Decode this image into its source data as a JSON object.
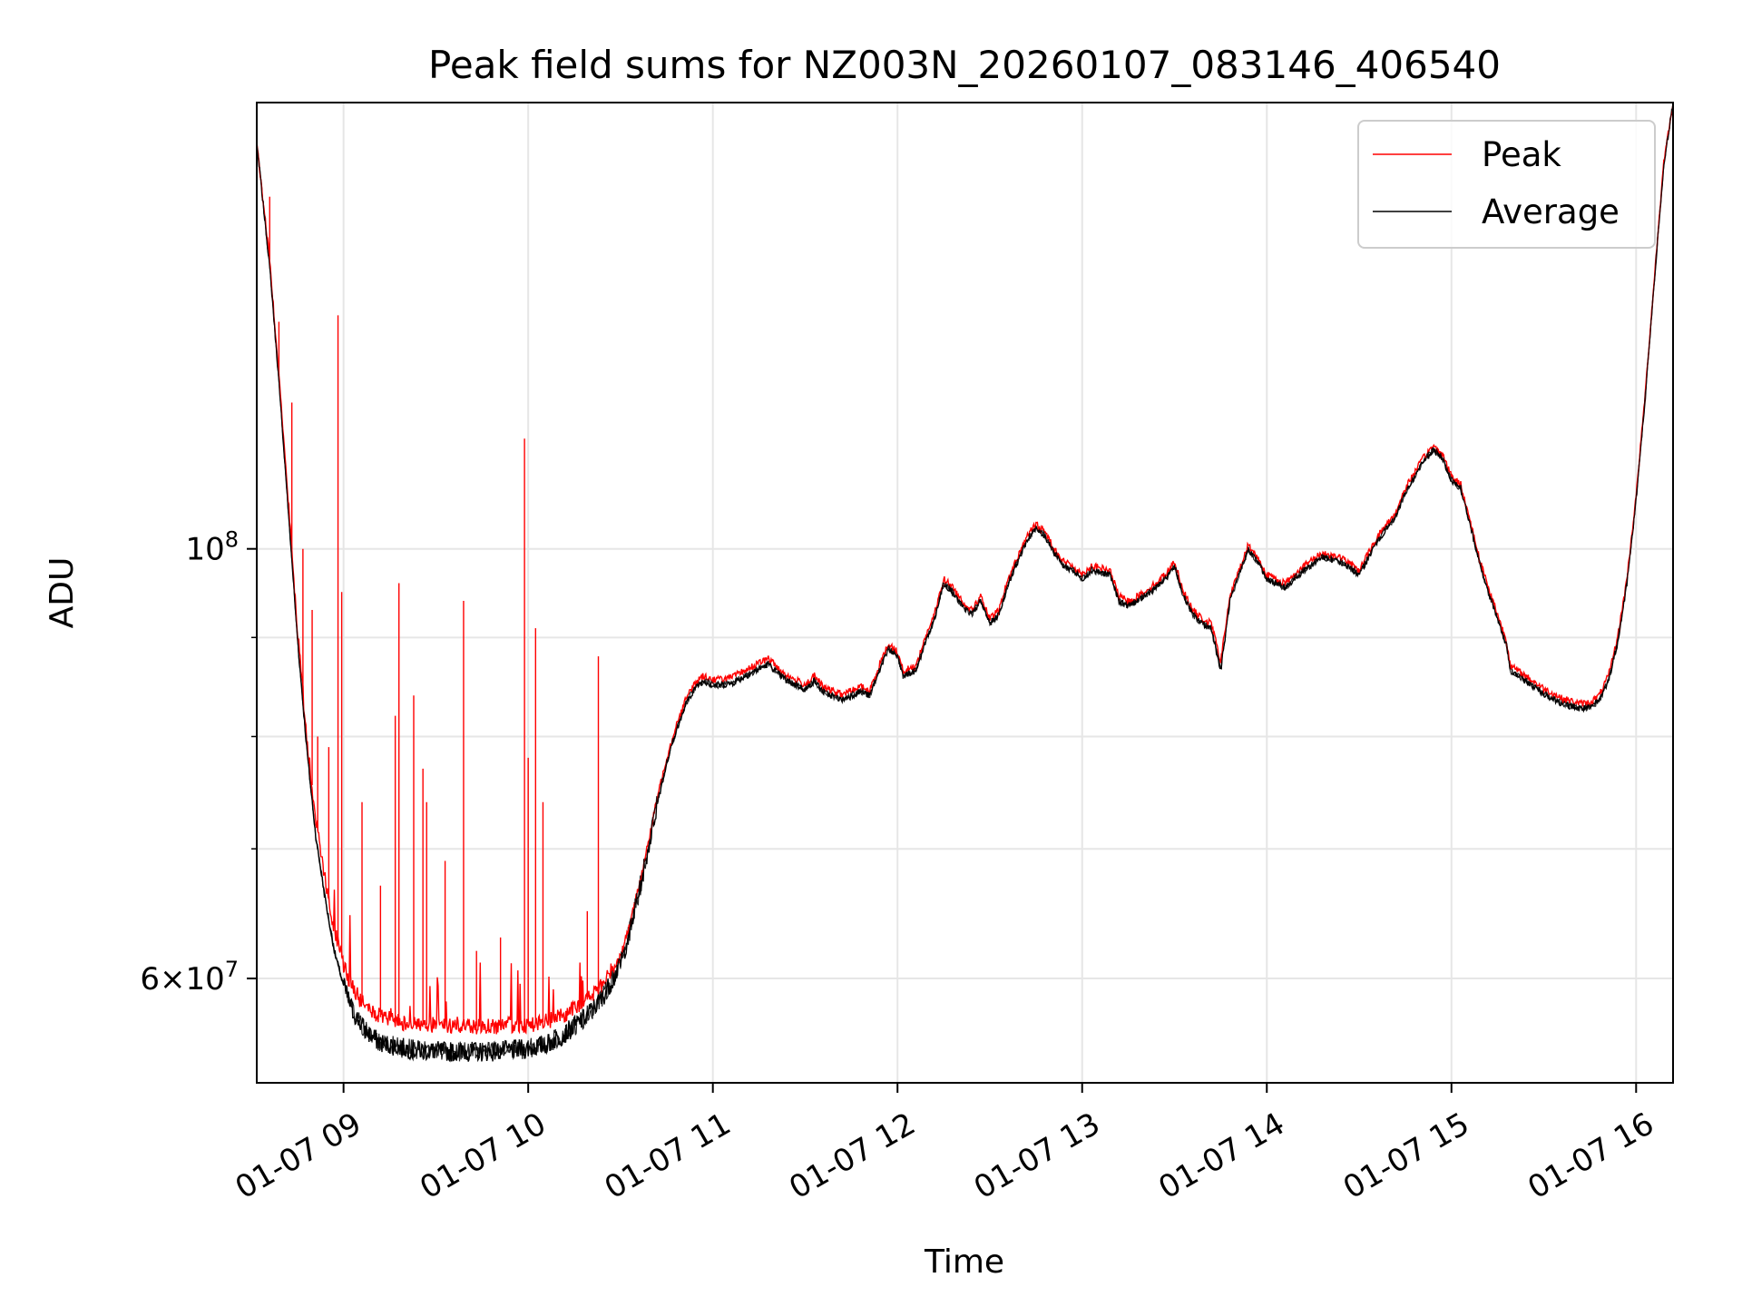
{
  "chart_data": {
    "type": "line",
    "title": "Peak field sums for NZ003N_20260107_083146_406540",
    "xlabel": "Time",
    "ylabel": "ADU",
    "yscale": "log",
    "grid": true,
    "legend_position": "top-right",
    "x_tick_labels": [
      "01-07 09",
      "01-07 10",
      "01-07 11",
      "01-07 12",
      "01-07 13",
      "01-07 14",
      "01-07 15",
      "01-07 16"
    ],
    "x_ticks_hours": [
      9,
      10,
      11,
      12,
      13,
      14,
      15,
      16
    ],
    "xlim_hours": [
      8.53,
      16.2
    ],
    "ylim": [
      53000000,
      170000000
    ],
    "y_major_ticks": [
      {
        "value": 100000000,
        "base": "10",
        "exp": "8"
      },
      {
        "value": 60000000,
        "mant": "6",
        "base": "10",
        "exp": "7"
      }
    ],
    "y_minor_ticks": [
      70000000,
      80000000,
      90000000
    ],
    "x_unit": "hour of day (01-07)",
    "series": [
      {
        "name": "Average",
        "color": "#000000",
        "points": [
          [
            8.53,
            162000000
          ],
          [
            8.6,
            140000000
          ],
          [
            8.65,
            122000000
          ],
          [
            8.7,
            105000000
          ],
          [
            8.75,
            90000000
          ],
          [
            8.8,
            79000000
          ],
          [
            8.85,
            71000000
          ],
          [
            8.9,
            66000000
          ],
          [
            8.95,
            62000000
          ],
          [
            9.0,
            59500000
          ],
          [
            9.05,
            57700000
          ],
          [
            9.1,
            56700000
          ],
          [
            9.15,
            56000000
          ],
          [
            9.2,
            55600000
          ],
          [
            9.3,
            55300000
          ],
          [
            9.4,
            55100000
          ],
          [
            9.6,
            55000000
          ],
          [
            9.8,
            55000000
          ],
          [
            10.0,
            55200000
          ],
          [
            10.1,
            55500000
          ],
          [
            10.2,
            56200000
          ],
          [
            10.3,
            57200000
          ],
          [
            10.4,
            58600000
          ],
          [
            10.5,
            61000000
          ],
          [
            10.55,
            63500000
          ],
          [
            10.6,
            66500000
          ],
          [
            10.65,
            70000000
          ],
          [
            10.7,
            74000000
          ],
          [
            10.75,
            77500000
          ],
          [
            10.8,
            80500000
          ],
          [
            10.85,
            83000000
          ],
          [
            10.9,
            84700000
          ],
          [
            10.95,
            85500000
          ],
          [
            11.0,
            85000000
          ],
          [
            11.1,
            85200000
          ],
          [
            11.2,
            86200000
          ],
          [
            11.3,
            87200000
          ],
          [
            11.4,
            85500000
          ],
          [
            11.5,
            84600000
          ],
          [
            11.55,
            85500000
          ],
          [
            11.6,
            84300000
          ],
          [
            11.7,
            83600000
          ],
          [
            11.8,
            84400000
          ],
          [
            11.85,
            84000000
          ],
          [
            11.9,
            86500000
          ],
          [
            11.95,
            88800000
          ],
          [
            12.0,
            88000000
          ],
          [
            12.03,
            86000000
          ],
          [
            12.1,
            86500000
          ],
          [
            12.15,
            89500000
          ],
          [
            12.2,
            92000000
          ],
          [
            12.25,
            96000000
          ],
          [
            12.3,
            95000000
          ],
          [
            12.35,
            93500000
          ],
          [
            12.4,
            92500000
          ],
          [
            12.45,
            94000000
          ],
          [
            12.5,
            91500000
          ],
          [
            12.55,
            92500000
          ],
          [
            12.6,
            96000000
          ],
          [
            12.65,
            98500000
          ],
          [
            12.7,
            101000000
          ],
          [
            12.75,
            102500000
          ],
          [
            12.8,
            101500000
          ],
          [
            12.85,
            99500000
          ],
          [
            12.9,
            98000000
          ],
          [
            12.95,
            97500000
          ],
          [
            13.0,
            96500000
          ],
          [
            13.05,
            97500000
          ],
          [
            13.15,
            97000000
          ],
          [
            13.2,
            94000000
          ],
          [
            13.25,
            93500000
          ],
          [
            13.3,
            94000000
          ],
          [
            13.4,
            95500000
          ],
          [
            13.45,
            96500000
          ],
          [
            13.5,
            98000000
          ],
          [
            13.55,
            94500000
          ],
          [
            13.6,
            92500000
          ],
          [
            13.65,
            91500000
          ],
          [
            13.7,
            91000000
          ],
          [
            13.75,
            86500000
          ],
          [
            13.8,
            94000000
          ],
          [
            13.85,
            97000000
          ],
          [
            13.9,
            100000000
          ],
          [
            13.95,
            98500000
          ],
          [
            14.0,
            96500000
          ],
          [
            14.1,
            95500000
          ],
          [
            14.2,
            97500000
          ],
          [
            14.3,
            99000000
          ],
          [
            14.4,
            98500000
          ],
          [
            14.5,
            97000000
          ],
          [
            14.55,
            99000000
          ],
          [
            14.6,
            101000000
          ],
          [
            14.7,
            104000000
          ],
          [
            14.75,
            107000000
          ],
          [
            14.8,
            109000000
          ],
          [
            14.85,
            111000000
          ],
          [
            14.9,
            112500000
          ],
          [
            14.95,
            111500000
          ],
          [
            15.0,
            108500000
          ],
          [
            15.05,
            107500000
          ],
          [
            15.1,
            103000000
          ],
          [
            15.15,
            98500000
          ],
          [
            15.2,
            95000000
          ],
          [
            15.25,
            92000000
          ],
          [
            15.3,
            89000000
          ],
          [
            15.32,
            86500000
          ],
          [
            15.4,
            85500000
          ],
          [
            15.5,
            84200000
          ],
          [
            15.6,
            83200000
          ],
          [
            15.7,
            82700000
          ],
          [
            15.75,
            82800000
          ],
          [
            15.8,
            83500000
          ],
          [
            15.85,
            85500000
          ],
          [
            15.9,
            89500000
          ],
          [
            15.95,
            96000000
          ],
          [
            16.0,
            106000000
          ],
          [
            16.05,
            120000000
          ],
          [
            16.1,
            138000000
          ],
          [
            16.15,
            158000000
          ],
          [
            16.2,
            170000000
          ]
        ]
      },
      {
        "name": "Peak",
        "color": "#ff0000",
        "points": [
          [
            8.53,
            162000000
          ],
          [
            8.6,
            141000000
          ],
          [
            8.65,
            123000000
          ],
          [
            8.7,
            106000000
          ],
          [
            8.75,
            91000000
          ],
          [
            8.8,
            80000000
          ],
          [
            8.85,
            72500000
          ],
          [
            8.9,
            67500000
          ],
          [
            8.95,
            63500000
          ],
          [
            9.0,
            61000000
          ],
          [
            9.05,
            59300000
          ],
          [
            9.1,
            58300000
          ],
          [
            9.15,
            57700000
          ],
          [
            9.2,
            57300000
          ],
          [
            9.3,
            57000000
          ],
          [
            9.4,
            56800000
          ],
          [
            9.6,
            56700000
          ],
          [
            9.8,
            56700000
          ],
          [
            10.0,
            56800000
          ],
          [
            10.1,
            57000000
          ],
          [
            10.2,
            57500000
          ],
          [
            10.3,
            58300000
          ],
          [
            10.4,
            59500000
          ],
          [
            10.5,
            61700000
          ],
          [
            10.55,
            64000000
          ],
          [
            10.6,
            67000000
          ],
          [
            10.65,
            70500000
          ],
          [
            10.7,
            74500000
          ],
          [
            10.75,
            78000000
          ],
          [
            10.8,
            81000000
          ],
          [
            10.85,
            83500000
          ],
          [
            10.9,
            85200000
          ],
          [
            10.95,
            86000000
          ],
          [
            11.0,
            85600000
          ],
          [
            11.1,
            85800000
          ],
          [
            11.2,
            86800000
          ],
          [
            11.3,
            87800000
          ],
          [
            11.4,
            86000000
          ],
          [
            11.5,
            85100000
          ],
          [
            11.55,
            86000000
          ],
          [
            11.6,
            84800000
          ],
          [
            11.7,
            84100000
          ],
          [
            11.8,
            84900000
          ],
          [
            11.85,
            84500000
          ],
          [
            11.9,
            87000000
          ],
          [
            11.95,
            89300000
          ],
          [
            12.0,
            88500000
          ],
          [
            12.03,
            86500000
          ],
          [
            12.1,
            87000000
          ],
          [
            12.15,
            90000000
          ],
          [
            12.2,
            92500000
          ],
          [
            12.25,
            96500000
          ],
          [
            12.3,
            95500000
          ],
          [
            12.35,
            94000000
          ],
          [
            12.4,
            93000000
          ],
          [
            12.45,
            94500000
          ],
          [
            12.5,
            92000000
          ],
          [
            12.55,
            93000000
          ],
          [
            12.6,
            96500000
          ],
          [
            12.65,
            99000000
          ],
          [
            12.7,
            101500000
          ],
          [
            12.75,
            103000000
          ],
          [
            12.8,
            102000000
          ],
          [
            12.85,
            100000000
          ],
          [
            12.9,
            98500000
          ],
          [
            12.95,
            98000000
          ],
          [
            13.0,
            97000000
          ],
          [
            13.05,
            98000000
          ],
          [
            13.15,
            97500000
          ],
          [
            13.2,
            94500000
          ],
          [
            13.25,
            94000000
          ],
          [
            13.3,
            94500000
          ],
          [
            13.4,
            96000000
          ],
          [
            13.45,
            97000000
          ],
          [
            13.5,
            98500000
          ],
          [
            13.55,
            95000000
          ],
          [
            13.6,
            93000000
          ],
          [
            13.65,
            92000000
          ],
          [
            13.7,
            91500000
          ],
          [
            13.75,
            87500000
          ],
          [
            13.8,
            94500000
          ],
          [
            13.85,
            97500000
          ],
          [
            13.9,
            100500000
          ],
          [
            13.95,
            99000000
          ],
          [
            14.0,
            97000000
          ],
          [
            14.1,
            96000000
          ],
          [
            14.2,
            98000000
          ],
          [
            14.3,
            99500000
          ],
          [
            14.4,
            99000000
          ],
          [
            14.5,
            97500000
          ],
          [
            14.55,
            99500000
          ],
          [
            14.6,
            101500000
          ],
          [
            14.7,
            104500000
          ],
          [
            14.75,
            107500000
          ],
          [
            14.8,
            109500000
          ],
          [
            14.85,
            111500000
          ],
          [
            14.9,
            113000000
          ],
          [
            14.95,
            112000000
          ],
          [
            15.0,
            109000000
          ],
          [
            15.05,
            108000000
          ],
          [
            15.1,
            103500000
          ],
          [
            15.15,
            99000000
          ],
          [
            15.2,
            95500000
          ],
          [
            15.25,
            92500000
          ],
          [
            15.3,
            89500000
          ],
          [
            15.32,
            87000000
          ],
          [
            15.4,
            86000000
          ],
          [
            15.5,
            84700000
          ],
          [
            15.6,
            83700000
          ],
          [
            15.7,
            83200000
          ],
          [
            15.75,
            83300000
          ],
          [
            15.8,
            84000000
          ],
          [
            15.85,
            86000000
          ],
          [
            15.9,
            90000000
          ],
          [
            15.95,
            96500000
          ],
          [
            16.0,
            106500000
          ],
          [
            16.05,
            120500000
          ],
          [
            16.1,
            138500000
          ],
          [
            16.15,
            158500000
          ],
          [
            16.2,
            170000000
          ]
        ],
        "spikes": [
          [
            8.6,
            152000000
          ],
          [
            8.65,
            131000000
          ],
          [
            8.72,
            119000000
          ],
          [
            8.78,
            100000000
          ],
          [
            8.83,
            93000000
          ],
          [
            8.86,
            80000000
          ],
          [
            8.97,
            132000000
          ],
          [
            8.99,
            95000000
          ],
          [
            9.1,
            74000000
          ],
          [
            9.2,
            67000000
          ],
          [
            9.28,
            82000000
          ],
          [
            9.3,
            96000000
          ],
          [
            9.38,
            84000000
          ],
          [
            9.43,
            77000000
          ],
          [
            9.55,
            69000000
          ],
          [
            9.65,
            94000000
          ],
          [
            9.85,
            63000000
          ],
          [
            9.98,
            114000000
          ],
          [
            10.0,
            78000000
          ],
          [
            10.04,
            91000000
          ],
          [
            10.08,
            74000000
          ],
          [
            10.32,
            65000000
          ],
          [
            10.38,
            88000000
          ],
          [
            8.92,
            79000000
          ],
          [
            9.45,
            74000000
          ],
          [
            9.72,
            62000000
          ]
        ]
      }
    ]
  }
}
